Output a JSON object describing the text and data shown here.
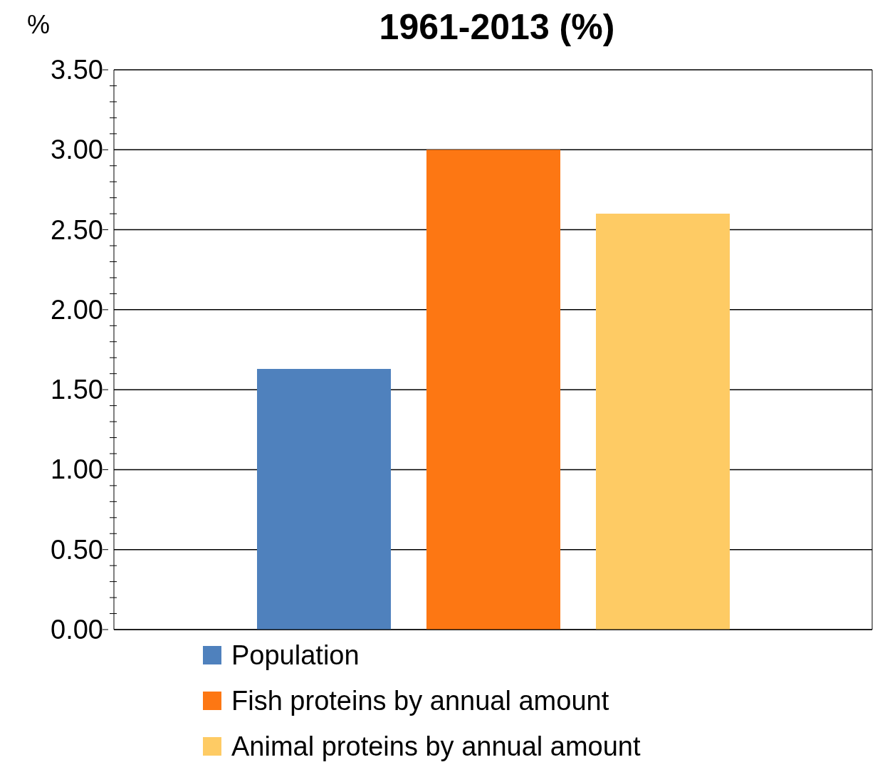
{
  "chart_data": {
    "type": "bar",
    "title": "1961-2013 (%)",
    "ylabel": "%",
    "categories": [
      null
    ],
    "series": [
      {
        "name": "Population",
        "color": "#4f81bd",
        "values": [
          1.63
        ]
      },
      {
        "name": "Fish proteins by annual amount",
        "color": "#fd7713",
        "values": [
          3.0
        ]
      },
      {
        "name": "Animal proteins by annual amount",
        "color": "#fecb64",
        "values": [
          2.6
        ]
      }
    ],
    "ylim": [
      0,
      3.5
    ],
    "yticks": [
      {
        "value": 0,
        "label": "0.00"
      },
      {
        "value": 0.1,
        "label": null
      },
      {
        "value": 0.2,
        "label": null
      },
      {
        "value": 0.3,
        "label": null
      },
      {
        "value": 0.4,
        "label": null
      },
      {
        "value": 0.5,
        "label": "0.50"
      },
      {
        "value": 0.6,
        "label": null
      },
      {
        "value": 0.7,
        "label": null
      },
      {
        "value": 0.8,
        "label": null
      },
      {
        "value": 0.9,
        "label": null
      },
      {
        "value": 1,
        "label": "1.00"
      },
      {
        "value": 1.1,
        "label": null
      },
      {
        "value": 1.2,
        "label": null
      },
      {
        "value": 1.3,
        "label": null
      },
      {
        "value": 1.4,
        "label": null
      },
      {
        "value": 1.5,
        "label": "1.50"
      },
      {
        "value": 1.6,
        "label": null
      },
      {
        "value": 1.7,
        "label": null
      },
      {
        "value": 1.8,
        "label": null
      },
      {
        "value": 1.9,
        "label": null
      },
      {
        "value": 2,
        "label": "2.00"
      },
      {
        "value": 2.1,
        "label": null
      },
      {
        "value": 2.2,
        "label": null
      },
      {
        "value": 2.3,
        "label": null
      },
      {
        "value": 2.4,
        "label": null
      },
      {
        "value": 2.5,
        "label": "2.50"
      },
      {
        "value": 2.6,
        "label": null
      },
      {
        "value": 2.7,
        "label": null
      },
      {
        "value": 2.8,
        "label": null
      },
      {
        "value": 2.9,
        "label": null
      },
      {
        "value": 3,
        "label": "3.00"
      },
      {
        "value": 3.1,
        "label": null
      },
      {
        "value": 3.2,
        "label": null
      },
      {
        "value": 3.3,
        "label": null
      },
      {
        "value": 3.4,
        "label": null
      },
      {
        "value": 3.5,
        "label": "3.50"
      }
    ],
    "grid": "y",
    "legend": "bottom"
  }
}
